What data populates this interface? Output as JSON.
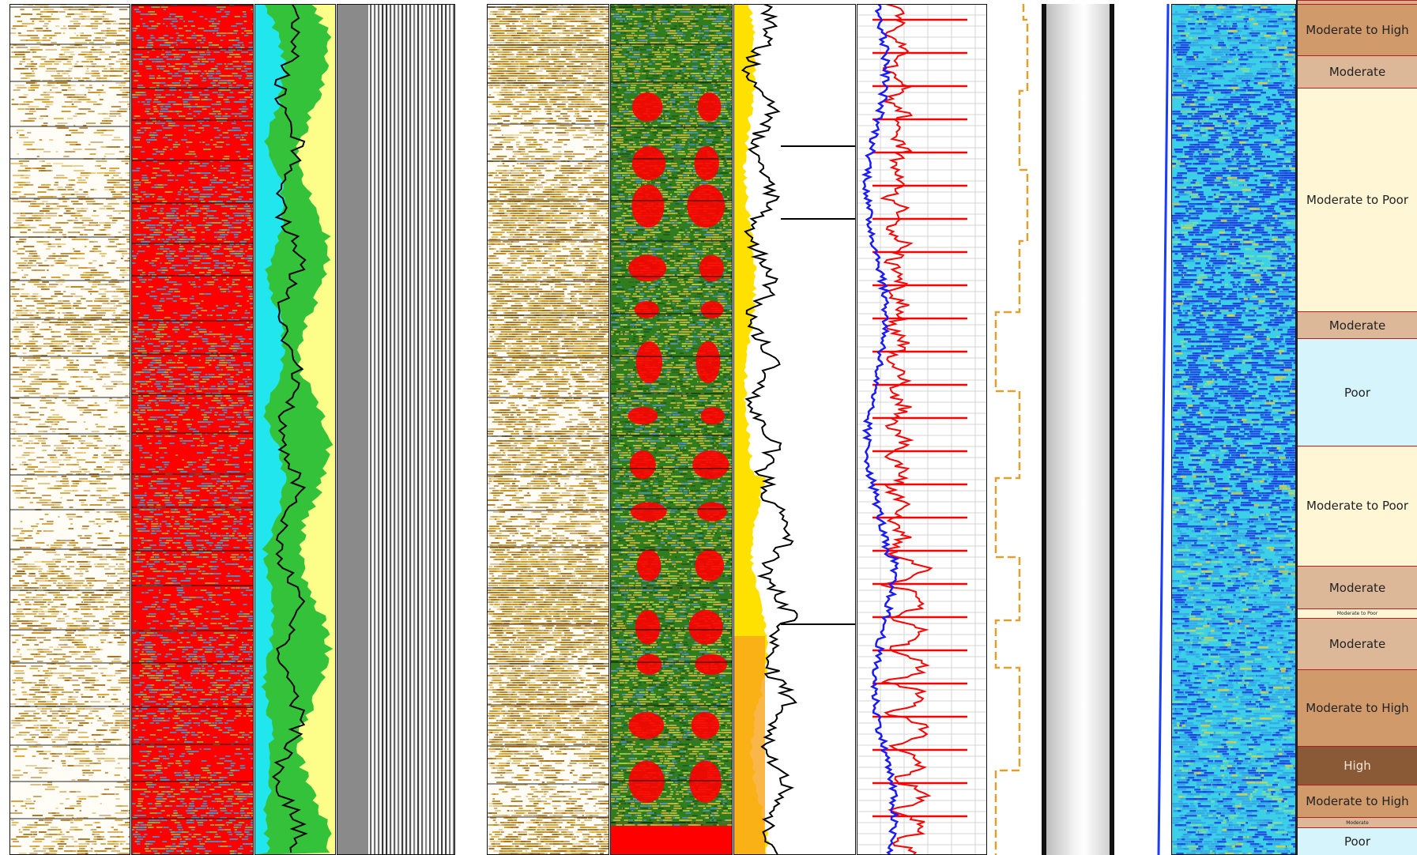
{
  "zones": [
    {
      "label": "",
      "rating": "moderate",
      "color": "#d9b08c",
      "span": [
        0,
        0.005
      ]
    },
    {
      "label": "Moderate to High",
      "rating": "moderate-to-high",
      "color": "#d19a6b",
      "span": [
        0.005,
        0.065
      ]
    },
    {
      "label": "Moderate",
      "rating": "moderate",
      "color": "#ddb898",
      "span": [
        0.065,
        0.103
      ]
    },
    {
      "label": "Moderate to Poor",
      "rating": "moderate-to-poor",
      "color": "#fff6d6",
      "span": [
        0.103,
        0.364
      ]
    },
    {
      "label": "Moderate",
      "rating": "moderate",
      "color": "#ddb898",
      "span": [
        0.364,
        0.396
      ]
    },
    {
      "label": "Poor",
      "rating": "poor",
      "color": "#d6f4fb",
      "span": [
        0.396,
        0.521
      ]
    },
    {
      "label": "Moderate to Poor",
      "rating": "moderate-to-poor",
      "color": "#fff6d6",
      "span": [
        0.521,
        0.662
      ]
    },
    {
      "label": "Moderate",
      "rating": "moderate",
      "color": "#ddb898",
      "span": [
        0.662,
        0.712
      ]
    },
    {
      "label": "Moderate to Poor",
      "rating": "moderate-to-poor",
      "color": "#fff6d6",
      "span": [
        0.712,
        0.723
      ],
      "tiny": true
    },
    {
      "label": "Moderate",
      "rating": "moderate",
      "color": "#ddb898",
      "span": [
        0.723,
        0.783
      ]
    },
    {
      "label": "Moderate to High",
      "rating": "moderate-to-high",
      "color": "#d19a6b",
      "span": [
        0.783,
        0.872
      ]
    },
    {
      "label": "High",
      "rating": "high",
      "color": "#8a5a36",
      "span": [
        0.872,
        0.918
      ]
    },
    {
      "label": "Moderate to High",
      "rating": "moderate-to-high",
      "color": "#d19a6b",
      "span": [
        0.918,
        0.956
      ]
    },
    {
      "label": "Moderate",
      "rating": "moderate",
      "color": "#ddb898",
      "span": [
        0.956,
        0.968
      ],
      "tiny": true
    },
    {
      "label": "Poor",
      "rating": "poor",
      "color": "#d6f4fb",
      "span": [
        0.968,
        1.0
      ]
    }
  ],
  "colors": {
    "oil_brown": "#b57912",
    "fluid_red": "#ff0000",
    "fluid_blue": "#4f8fbf",
    "lith_green": "#35c23b",
    "lith_cyan": "#22e6ee",
    "lith_yellow": "#fdfd8a",
    "gamma_yellow": "#ffe100",
    "gamma_orange": "#f8a51c",
    "curve_black": "#000000",
    "curve_red": "#ff0000",
    "curve_blue": "#1a1aff",
    "dashed_orange": "#e0a030",
    "image_blue": "#1a3cff",
    "image_cyan": "#3bd0e8"
  }
}
